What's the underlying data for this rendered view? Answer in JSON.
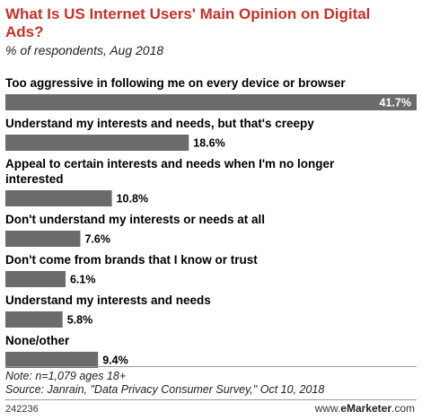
{
  "header": {
    "title": "What Is US Internet Users' Main Opinion on Digital Ads?",
    "subtitle": "% of respondents, Aug 2018"
  },
  "footer": {
    "note": "Note: n=1,079 ages 18+",
    "source": "Source: Janrain, \"Data Privacy Consumer Survey,\" Oct 10, 2018",
    "chart_id": "242236",
    "brand_prefix": "www.",
    "brand_name": "eMarketer",
    "brand_suffix": ".com"
  },
  "colors": {
    "title": "#c83028",
    "bar": "#6b6b6b",
    "bar_text_inside": "#ffffff"
  },
  "chart_data": {
    "type": "bar",
    "orientation": "horizontal",
    "categories": [
      "Too aggressive in following me on every device or browser",
      "Understand my interests and needs, but that's creepy",
      "Appeal to certain interests and needs when I'm no longer interested",
      "Don't understand my interests or needs at all",
      "Don't come from brands that I know or trust",
      "Understand my interests and needs",
      "None/other"
    ],
    "category_lines": [
      [
        "Too aggressive in following me on every device or browser"
      ],
      [
        "Understand my interests and needs, but that's creepy"
      ],
      [
        "Appeal to certain interests and needs when I'm no longer",
        "interested"
      ],
      [
        "Don't understand my interests or needs at all"
      ],
      [
        "Don't come from brands that I know or trust"
      ],
      [
        "Understand my interests and needs"
      ],
      [
        "None/other"
      ]
    ],
    "values": [
      41.7,
      18.6,
      10.8,
      7.6,
      6.1,
      5.8,
      9.4
    ],
    "value_labels": [
      "41.7%",
      "18.6%",
      "10.8%",
      "7.6%",
      "6.1%",
      "5.8%",
      "9.4%"
    ],
    "xlim": [
      0,
      41.7
    ],
    "grid": false,
    "legend": "none"
  }
}
